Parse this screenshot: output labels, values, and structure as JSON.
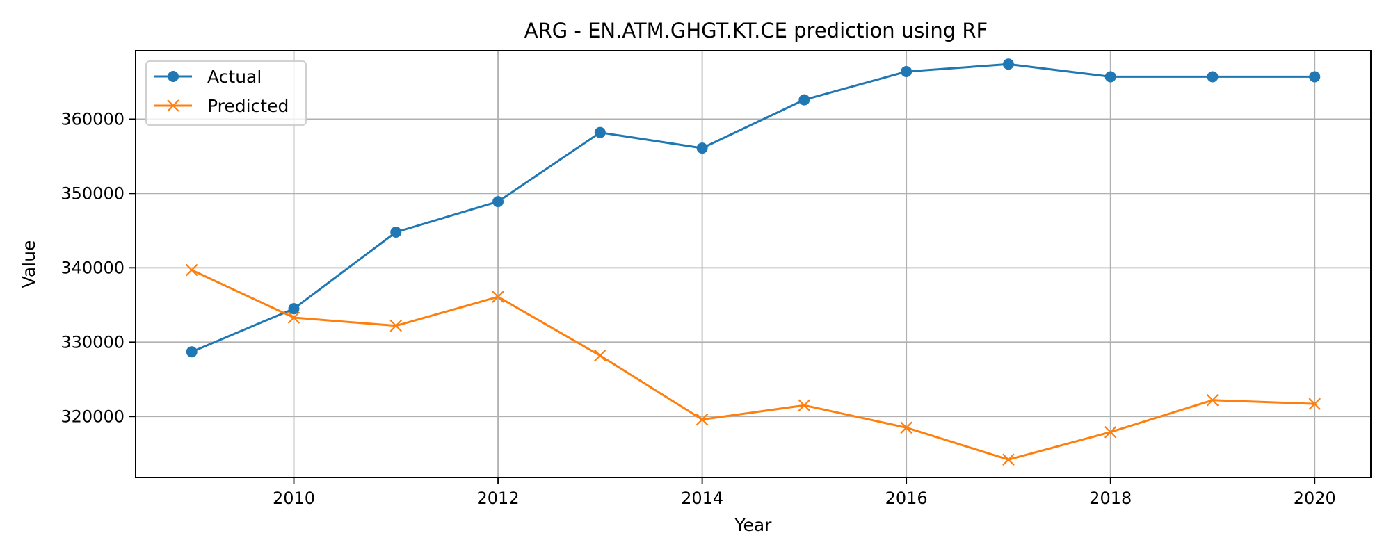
{
  "chart_data": {
    "type": "line",
    "title": "ARG - EN.ATM.GHGT.KT.CE prediction using RF",
    "xlabel": "Year",
    "ylabel": "Value",
    "x": [
      2009,
      2010,
      2011,
      2012,
      2013,
      2014,
      2015,
      2016,
      2017,
      2018,
      2019,
      2020
    ],
    "xlim": [
      2008.45,
      2020.55
    ],
    "ylim": [
      311800,
      369200
    ],
    "x_ticks": [
      2010,
      2012,
      2014,
      2016,
      2018,
      2020
    ],
    "x_tick_labels": [
      "2010",
      "2012",
      "2014",
      "2016",
      "2018",
      "2020"
    ],
    "y_ticks": [
      320000,
      330000,
      340000,
      350000,
      360000
    ],
    "y_tick_labels": [
      "320000",
      "330000",
      "340000",
      "350000",
      "360000"
    ],
    "grid": true,
    "legend_position": "top-left",
    "series": [
      {
        "name": "Actual",
        "color": "#1f77b4",
        "marker": "circle",
        "values": [
          328700,
          334500,
          344800,
          348900,
          358200,
          356100,
          362600,
          366400,
          367400,
          365700,
          365700,
          365700
        ]
      },
      {
        "name": "Predicted",
        "color": "#ff7f0e",
        "marker": "x",
        "values": [
          339700,
          333300,
          332200,
          336100,
          328200,
          319600,
          321500,
          318500,
          314200,
          317900,
          322200,
          321700
        ]
      }
    ]
  }
}
